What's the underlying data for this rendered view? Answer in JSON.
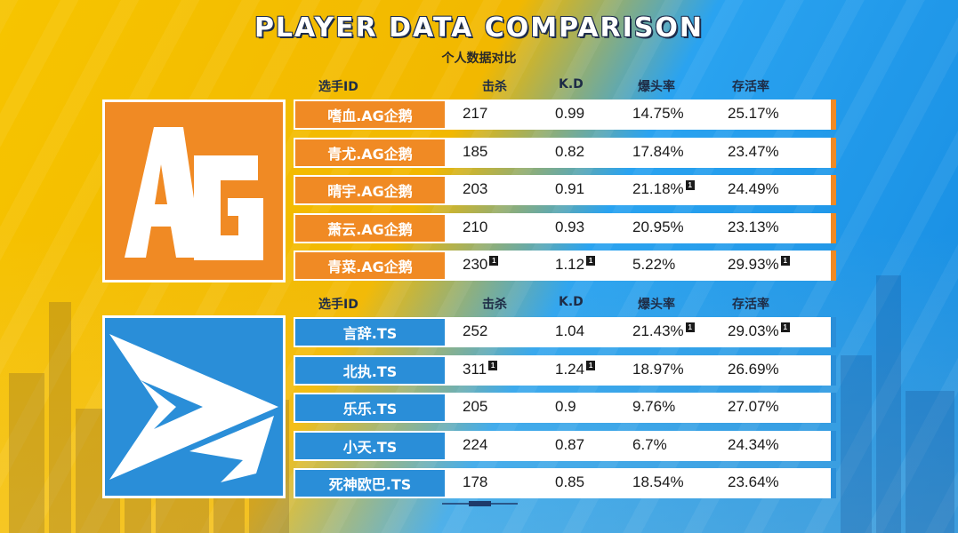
{
  "title": "PLAYER DATA COMPARISON",
  "subtitle": "个人数据对比",
  "columns": {
    "id": "选手ID",
    "kills": "击杀",
    "kd": "K.D",
    "headshot": "爆头率",
    "survival": "存活率"
  },
  "ag": {
    "players": [
      {
        "name": "嗜血.AG企鹅",
        "kills": "217",
        "kd": "0.99",
        "headshot": "14.75%",
        "survival": "25.17%",
        "marks": []
      },
      {
        "name": "青尤.AG企鹅",
        "kills": "185",
        "kd": "0.82",
        "headshot": "17.84%",
        "survival": "23.47%",
        "marks": []
      },
      {
        "name": "晴宇.AG企鹅",
        "kills": "203",
        "kd": "0.91",
        "headshot": "21.18%",
        "survival": "24.49%",
        "marks": [
          "headshot"
        ]
      },
      {
        "name": "萧云.AG企鹅",
        "kills": "210",
        "kd": "0.93",
        "headshot": "20.95%",
        "survival": "23.13%",
        "marks": []
      },
      {
        "name": "青菜.AG企鹅",
        "kills": "230",
        "kd": "1.12",
        "headshot": "5.22%",
        "survival": "29.93%",
        "marks": [
          "kills",
          "kd",
          "survival"
        ]
      }
    ]
  },
  "ts": {
    "players": [
      {
        "name": "言辞.TS",
        "kills": "252",
        "kd": "1.04",
        "headshot": "21.43%",
        "survival": "29.03%",
        "marks": [
          "headshot",
          "survival"
        ]
      },
      {
        "name": "北执.TS",
        "kills": "311",
        "kd": "1.24",
        "headshot": "18.97%",
        "survival": "26.69%",
        "marks": [
          "kills",
          "kd"
        ]
      },
      {
        "name": "乐乐.TS",
        "kills": "205",
        "kd": "0.9",
        "headshot": "9.76%",
        "survival": "27.07%",
        "marks": []
      },
      {
        "name": "小天.TS",
        "kills": "224",
        "kd": "0.87",
        "headshot": "6.7%",
        "survival": "24.34%",
        "marks": []
      },
      {
        "name": "死神欧巴.TS",
        "kills": "178",
        "kd": "0.85",
        "headshot": "18.54%",
        "survival": "23.64%",
        "marks": []
      }
    ]
  },
  "colors": {
    "ag": "#f08a24",
    "ts": "#2a8ed8",
    "bg_left": "#f6c400",
    "bg_right": "#148ae0"
  },
  "icons": {
    "ag_logo": "ag-team-logo",
    "ts_logo": "ts-team-logo",
    "best_mark": "best-stat-marker"
  }
}
